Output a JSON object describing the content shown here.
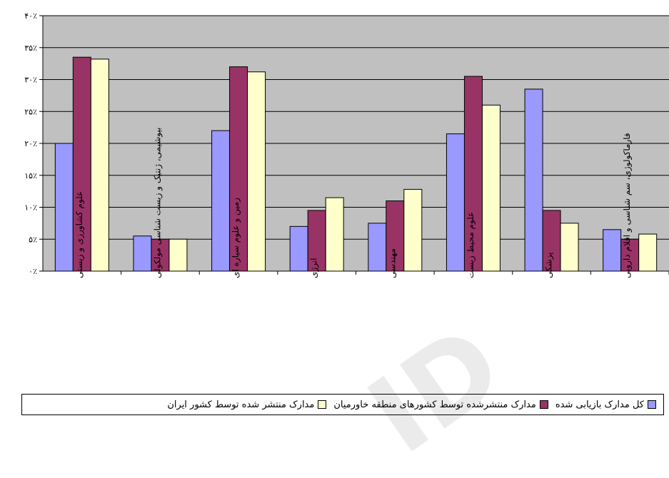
{
  "chart_data": {
    "type": "bar",
    "categories": [
      "علوم کشاورزی و زیستی",
      "بیوشیمی، ژنتیک و زیست شناسی مولکولی",
      "زمین و علوم سیاره ای",
      "انرژی",
      "مهندسی",
      "علوم محیط زیست",
      "پزشکی",
      "فارماکولوژی، سم شناسی و اقلام دارویی"
    ],
    "series": [
      {
        "name": "کل مدارک بازیابی شده",
        "color": "#9999ff",
        "values": [
          20,
          5.5,
          22,
          7,
          7.5,
          21.5,
          28.5,
          6.5
        ]
      },
      {
        "name": "مدارک منتشرشده توسط کشورهای منطقه خاورمیان",
        "color": "#993366",
        "values": [
          33.5,
          5,
          32,
          9.5,
          11,
          30.5,
          9.5,
          5
        ]
      },
      {
        "name": "مدارک منتشر شده توسط کشور ایران",
        "color": "#ffffcc",
        "values": [
          33.2,
          5,
          31.2,
          11.5,
          12.8,
          26,
          7.5,
          5.8
        ]
      }
    ],
    "yticks": [
      "۰٪",
      "۵٪",
      "۱۰٪",
      "۱۵٪",
      "۲۰٪",
      "۲۵٪",
      "۳۰٪",
      "۳۵٪",
      "۴۰٪"
    ],
    "ylim": [
      0,
      40
    ],
    "grid": true,
    "plot_background": "#c0c0c0",
    "legend_position": "bottom"
  }
}
